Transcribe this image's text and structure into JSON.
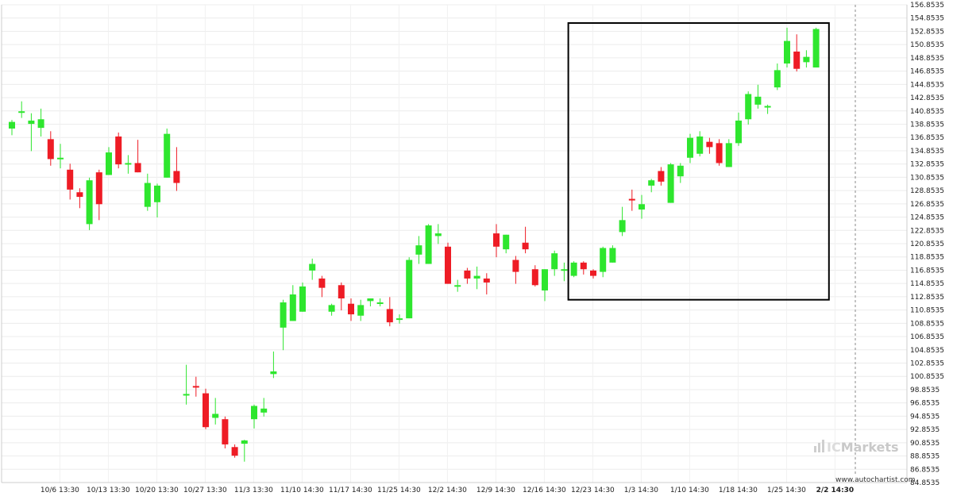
{
  "chart_data": {
    "type": "candlestick",
    "y_ticks": [
      "84.8535",
      "86.8535",
      "88.8535",
      "90.8535",
      "92.8535",
      "94.8535",
      "96.8535",
      "98.8535",
      "100.8535",
      "102.8535",
      "104.8535",
      "106.8535",
      "108.8535",
      "110.8535",
      "112.8535",
      "114.8535",
      "116.8535",
      "118.8535",
      "120.8535",
      "122.8535",
      "124.8535",
      "126.8535",
      "128.8535",
      "130.8535",
      "132.8535",
      "134.8535",
      "136.8535",
      "138.8535",
      "140.8535",
      "142.8535",
      "144.8535",
      "146.8535",
      "148.8535",
      "150.8535",
      "152.8535",
      "154.8535",
      "156.8535"
    ],
    "ylim": [
      84.8535,
      156.8535
    ],
    "x_ticks": [
      {
        "label": "10/6 13:30",
        "at": 2
      },
      {
        "label": "10/13 13:30",
        "at": 7
      },
      {
        "label": "10/20 13:30",
        "at": 12
      },
      {
        "label": "10/27 13:30",
        "at": 17
      },
      {
        "label": "11/3 13:30",
        "at": 22
      },
      {
        "label": "11/10 14:30",
        "at": 27
      },
      {
        "label": "11/17 14:30",
        "at": 32
      },
      {
        "label": "11/25 14:30",
        "at": 37
      },
      {
        "label": "12/2 14:30",
        "at": 42
      },
      {
        "label": "12/9 14:30",
        "at": 47
      },
      {
        "label": "12/16 14:30",
        "at": 52
      },
      {
        "label": "12/23 14:30",
        "at": 57
      },
      {
        "label": "1/3 14:30",
        "at": 62
      },
      {
        "label": "1/10 14:30",
        "at": 67
      },
      {
        "label": "1/18 14:30",
        "at": 72
      },
      {
        "label": "1/25 14:30",
        "at": 77
      },
      {
        "label": "2/2 14:30",
        "at": 82,
        "bold": true
      }
    ],
    "candles": [
      {
        "o": 138.2,
        "h": 139.5,
        "l": 137.2,
        "c": 139.2
      },
      {
        "o": 140.8,
        "h": 142.3,
        "l": 139.8,
        "c": 140.8
      },
      {
        "o": 138.9,
        "h": 140.5,
        "l": 134.8,
        "c": 139.4
      },
      {
        "o": 138.3,
        "h": 141.2,
        "l": 137.0,
        "c": 139.6
      },
      {
        "o": 136.6,
        "h": 137.8,
        "l": 132.6,
        "c": 133.6
      },
      {
        "o": 133.8,
        "h": 135.9,
        "l": 132.2,
        "c": 133.8
      },
      {
        "o": 132.0,
        "h": 132.9,
        "l": 127.5,
        "c": 129.0
      },
      {
        "o": 128.6,
        "h": 129.2,
        "l": 126.2,
        "c": 127.9
      },
      {
        "o": 123.8,
        "h": 130.8,
        "l": 122.9,
        "c": 130.4
      },
      {
        "o": 131.6,
        "h": 132.0,
        "l": 124.4,
        "c": 126.8
      },
      {
        "o": 131.2,
        "h": 135.4,
        "l": 131.2,
        "c": 134.6
      },
      {
        "o": 137.0,
        "h": 137.6,
        "l": 132.2,
        "c": 132.8
      },
      {
        "o": 132.8,
        "h": 134.2,
        "l": 131.4,
        "c": 133.0
      },
      {
        "o": 133.0,
        "h": 136.5,
        "l": 131.6,
        "c": 131.6
      },
      {
        "o": 126.4,
        "h": 131.4,
        "l": 125.8,
        "c": 130.0
      },
      {
        "o": 127.1,
        "h": 129.9,
        "l": 124.8,
        "c": 129.6
      },
      {
        "o": 130.8,
        "h": 138.2,
        "l": 130.8,
        "c": 137.4
      },
      {
        "o": 131.8,
        "h": 135.4,
        "l": 128.8,
        "c": 130.0
      },
      {
        "o": 98.2,
        "h": 102.6,
        "l": 96.6,
        "c": 98.2
      },
      {
        "o": 99.4,
        "h": 100.8,
        "l": 97.8,
        "c": 99.2
      },
      {
        "o": 98.3,
        "h": 99.0,
        "l": 92.9,
        "c": 93.2
      },
      {
        "o": 94.6,
        "h": 97.6,
        "l": 93.6,
        "c": 95.2
      },
      {
        "o": 94.4,
        "h": 94.8,
        "l": 90.0,
        "c": 90.6
      },
      {
        "o": 90.2,
        "h": 90.6,
        "l": 88.6,
        "c": 88.9
      },
      {
        "o": 90.7,
        "h": 91.3,
        "l": 88.0,
        "c": 91.2
      },
      {
        "o": 94.4,
        "h": 96.6,
        "l": 93.0,
        "c": 96.4
      },
      {
        "o": 95.4,
        "h": 97.6,
        "l": 94.8,
        "c": 96.0
      },
      {
        "o": 101.2,
        "h": 104.6,
        "l": 100.6,
        "c": 101.6
      },
      {
        "o": 108.2,
        "h": 112.4,
        "l": 104.8,
        "c": 112.0
      },
      {
        "o": 109.2,
        "h": 114.6,
        "l": 109.2,
        "c": 113.2
      },
      {
        "o": 110.6,
        "h": 115.0,
        "l": 110.6,
        "c": 114.4
      },
      {
        "o": 116.8,
        "h": 118.6,
        "l": 115.4,
        "c": 117.8
      },
      {
        "o": 115.6,
        "h": 116.0,
        "l": 112.8,
        "c": 114.2
      },
      {
        "o": 110.6,
        "h": 111.8,
        "l": 110.0,
        "c": 111.6
      },
      {
        "o": 114.6,
        "h": 115.0,
        "l": 110.8,
        "c": 112.6
      },
      {
        "o": 111.8,
        "h": 112.6,
        "l": 109.2,
        "c": 110.2
      },
      {
        "o": 110.0,
        "h": 112.4,
        "l": 109.2,
        "c": 111.6
      },
      {
        "o": 112.2,
        "h": 112.6,
        "l": 111.4,
        "c": 112.6
      },
      {
        "o": 112.0,
        "h": 112.6,
        "l": 111.4,
        "c": 112.0
      },
      {
        "o": 111.0,
        "h": 112.8,
        "l": 108.4,
        "c": 109.0
      },
      {
        "o": 109.6,
        "h": 110.2,
        "l": 108.8,
        "c": 109.6
      },
      {
        "o": 109.6,
        "h": 118.8,
        "l": 109.6,
        "c": 118.4
      },
      {
        "o": 119.2,
        "h": 122.0,
        "l": 117.8,
        "c": 120.6
      },
      {
        "o": 117.8,
        "h": 123.8,
        "l": 117.8,
        "c": 123.6
      },
      {
        "o": 122.0,
        "h": 123.8,
        "l": 120.8,
        "c": 122.4
      },
      {
        "o": 120.4,
        "h": 121.0,
        "l": 114.8,
        "c": 114.8
      },
      {
        "o": 114.6,
        "h": 115.4,
        "l": 113.6,
        "c": 114.6
      },
      {
        "o": 116.8,
        "h": 117.2,
        "l": 114.8,
        "c": 115.6
      },
      {
        "o": 115.6,
        "h": 117.4,
        "l": 114.0,
        "c": 116.0
      },
      {
        "o": 115.6,
        "h": 116.4,
        "l": 113.2,
        "c": 115.0
      },
      {
        "o": 122.4,
        "h": 123.8,
        "l": 118.8,
        "c": 120.4
      },
      {
        "o": 120.0,
        "h": 122.2,
        "l": 119.4,
        "c": 122.2
      },
      {
        "o": 118.4,
        "h": 119.0,
        "l": 114.8,
        "c": 116.6
      },
      {
        "o": 121.0,
        "h": 123.4,
        "l": 119.4,
        "c": 120.0
      },
      {
        "o": 117.0,
        "h": 117.6,
        "l": 114.4,
        "c": 114.6
      },
      {
        "o": 113.8,
        "h": 117.0,
        "l": 112.2,
        "c": 117.0
      },
      {
        "o": 117.0,
        "h": 119.8,
        "l": 116.0,
        "c": 119.4
      },
      {
        "o": 116.8,
        "h": 118.0,
        "l": 115.2,
        "c": 117.0
      },
      {
        "o": 116.0,
        "h": 118.2,
        "l": 115.8,
        "c": 118.0
      },
      {
        "o": 118.0,
        "h": 118.2,
        "l": 116.2,
        "c": 117.0
      },
      {
        "o": 116.8,
        "h": 117.0,
        "l": 115.6,
        "c": 116.0
      },
      {
        "o": 116.6,
        "h": 120.4,
        "l": 115.8,
        "c": 120.2
      },
      {
        "o": 118.0,
        "h": 120.6,
        "l": 118.0,
        "c": 120.2
      },
      {
        "o": 122.6,
        "h": 126.4,
        "l": 122.0,
        "c": 124.4
      },
      {
        "o": 127.6,
        "h": 129.0,
        "l": 125.8,
        "c": 127.4
      },
      {
        "o": 126.0,
        "h": 128.2,
        "l": 124.6,
        "c": 126.8
      },
      {
        "o": 129.6,
        "h": 130.6,
        "l": 128.6,
        "c": 130.4
      },
      {
        "o": 131.8,
        "h": 132.4,
        "l": 129.6,
        "c": 130.2
      },
      {
        "o": 127.0,
        "h": 133.0,
        "l": 127.0,
        "c": 132.8
      },
      {
        "o": 131.0,
        "h": 133.0,
        "l": 130.0,
        "c": 132.6
      },
      {
        "o": 133.8,
        "h": 137.4,
        "l": 133.0,
        "c": 136.8
      },
      {
        "o": 134.4,
        "h": 137.8,
        "l": 134.0,
        "c": 137.0
      },
      {
        "o": 136.2,
        "h": 136.8,
        "l": 134.4,
        "c": 135.4
      },
      {
        "o": 136.0,
        "h": 136.6,
        "l": 132.6,
        "c": 133.0
      },
      {
        "o": 132.4,
        "h": 136.6,
        "l": 132.4,
        "c": 136.0
      },
      {
        "o": 136.0,
        "h": 140.6,
        "l": 135.6,
        "c": 139.4
      },
      {
        "o": 139.6,
        "h": 143.8,
        "l": 138.8,
        "c": 143.4
      },
      {
        "o": 141.8,
        "h": 144.8,
        "l": 141.2,
        "c": 143.0
      },
      {
        "o": 141.4,
        "h": 141.8,
        "l": 140.4,
        "c": 141.6
      },
      {
        "o": 144.4,
        "h": 148.0,
        "l": 144.0,
        "c": 147.0
      },
      {
        "o": 148.0,
        "h": 153.4,
        "l": 147.4,
        "c": 151.4
      },
      {
        "o": 149.8,
        "h": 152.4,
        "l": 146.8,
        "c": 147.2
      },
      {
        "o": 148.2,
        "h": 150.0,
        "l": 147.4,
        "c": 149.0
      },
      {
        "o": 147.4,
        "h": 153.4,
        "l": 147.4,
        "c": 153.2
      }
    ],
    "pattern_box": {
      "start": 58,
      "end": 84,
      "top": 154.1,
      "bottom": 112.4
    },
    "colors": {
      "up": "#2ee62e",
      "down": "#ee1c25",
      "wick_up": "#2ee62e",
      "wick_down": "#ee1c25",
      "box": "#000000"
    }
  },
  "watermark": {
    "brand": "Markets",
    "brand_prefix": "IC"
  },
  "credit": "www.autochartist.com"
}
